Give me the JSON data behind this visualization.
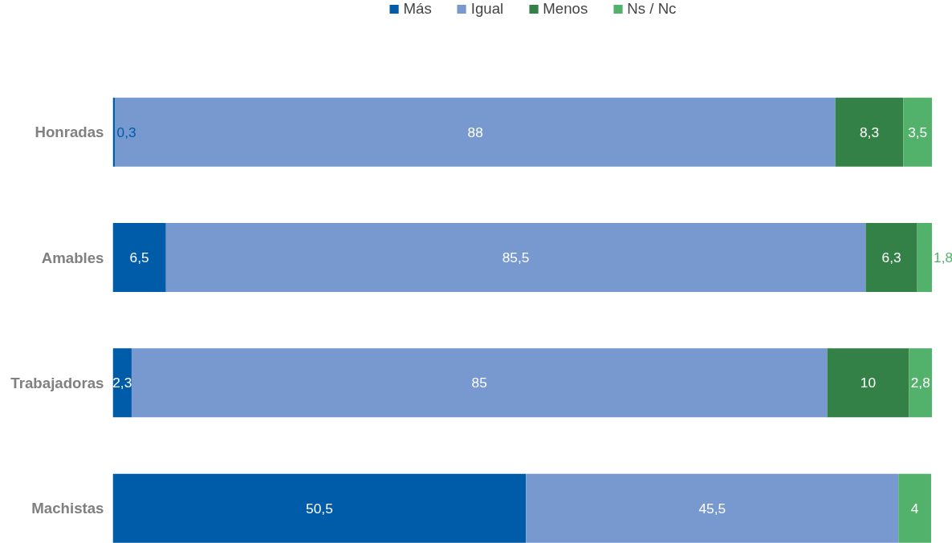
{
  "chart_data": {
    "type": "bar",
    "orientation": "horizontal",
    "stacked": true,
    "legend": "top",
    "grid": false,
    "categories": [
      "Honradas",
      "Amables",
      "Trabajadoras",
      "Machistas"
    ],
    "series": [
      {
        "name": "Más",
        "color": "#005ba8",
        "values": [
          0.3,
          6.5,
          2.3,
          50.5
        ],
        "value_labels": [
          "0,3",
          "6,5",
          "2,3",
          "50,5"
        ]
      },
      {
        "name": "Igual",
        "color": "#7799cf",
        "values": [
          88,
          85.5,
          85,
          45.5
        ],
        "value_labels": [
          "88",
          "85,5",
          "85",
          "45,5"
        ]
      },
      {
        "name": "Menos",
        "color": "#338147",
        "values": [
          8.3,
          6.3,
          10,
          null
        ],
        "value_labels": [
          "8,3",
          "6,3",
          "10",
          null
        ]
      },
      {
        "name": "Ns / Nc",
        "color": "#52b26b",
        "values": [
          3.5,
          1.8,
          2.8,
          4
        ],
        "value_labels": [
          "3,5",
          "1,8",
          "2,8",
          "4"
        ]
      }
    ]
  }
}
